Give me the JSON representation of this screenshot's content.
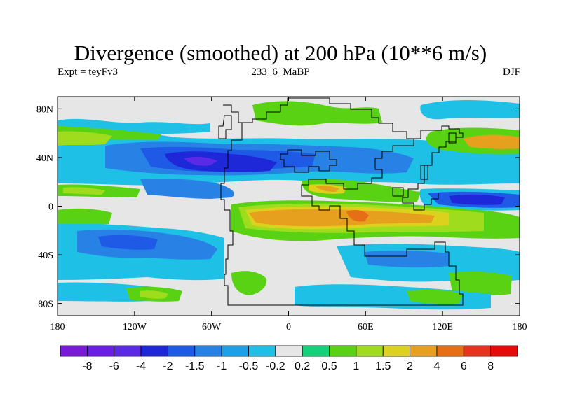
{
  "title": "Divergence (smoothed) at 200 hPa (10**6 m/s)",
  "subtitle_left": "Expt = teyFv3",
  "subtitle_center": "233_6_MaBP",
  "subtitle_right": "DJF",
  "lat_ticks": [
    {
      "value": 80,
      "label": "80N"
    },
    {
      "value": 40,
      "label": "40N"
    },
    {
      "value": 0,
      "label": "0"
    },
    {
      "value": -40,
      "label": "40S"
    },
    {
      "value": -80,
      "label": "80S"
    }
  ],
  "lon_ticks": [
    {
      "value": -180,
      "label": "180"
    },
    {
      "value": -120,
      "label": "120W"
    },
    {
      "value": -60,
      "label": "60W"
    },
    {
      "value": 0,
      "label": "0"
    },
    {
      "value": 60,
      "label": "60E"
    },
    {
      "value": 120,
      "label": "120E"
    },
    {
      "value": 180,
      "label": "180"
    }
  ],
  "colorbar": {
    "colors": [
      "#7a1ad9",
      "#6a1ee6",
      "#5a2ae6",
      "#1e28d9",
      "#1e5ae6",
      "#2882e6",
      "#1ea0e6",
      "#1ec0e6",
      "#e6e6e6",
      "#14d27a",
      "#5ad214",
      "#a0dc1e",
      "#dcd21e",
      "#e6a01e",
      "#e66e14",
      "#e6321e",
      "#e60a0a"
    ],
    "labels": [
      "-8",
      "-6",
      "-4",
      "-2",
      "-1.5",
      "-1",
      "-0.5",
      "-0.2",
      "0.2",
      "0.5",
      "1",
      "1.5",
      "2",
      "4",
      "6",
      "8"
    ]
  },
  "colors": {
    "background_field": "#e6e6e6",
    "coast": "#000000"
  }
}
